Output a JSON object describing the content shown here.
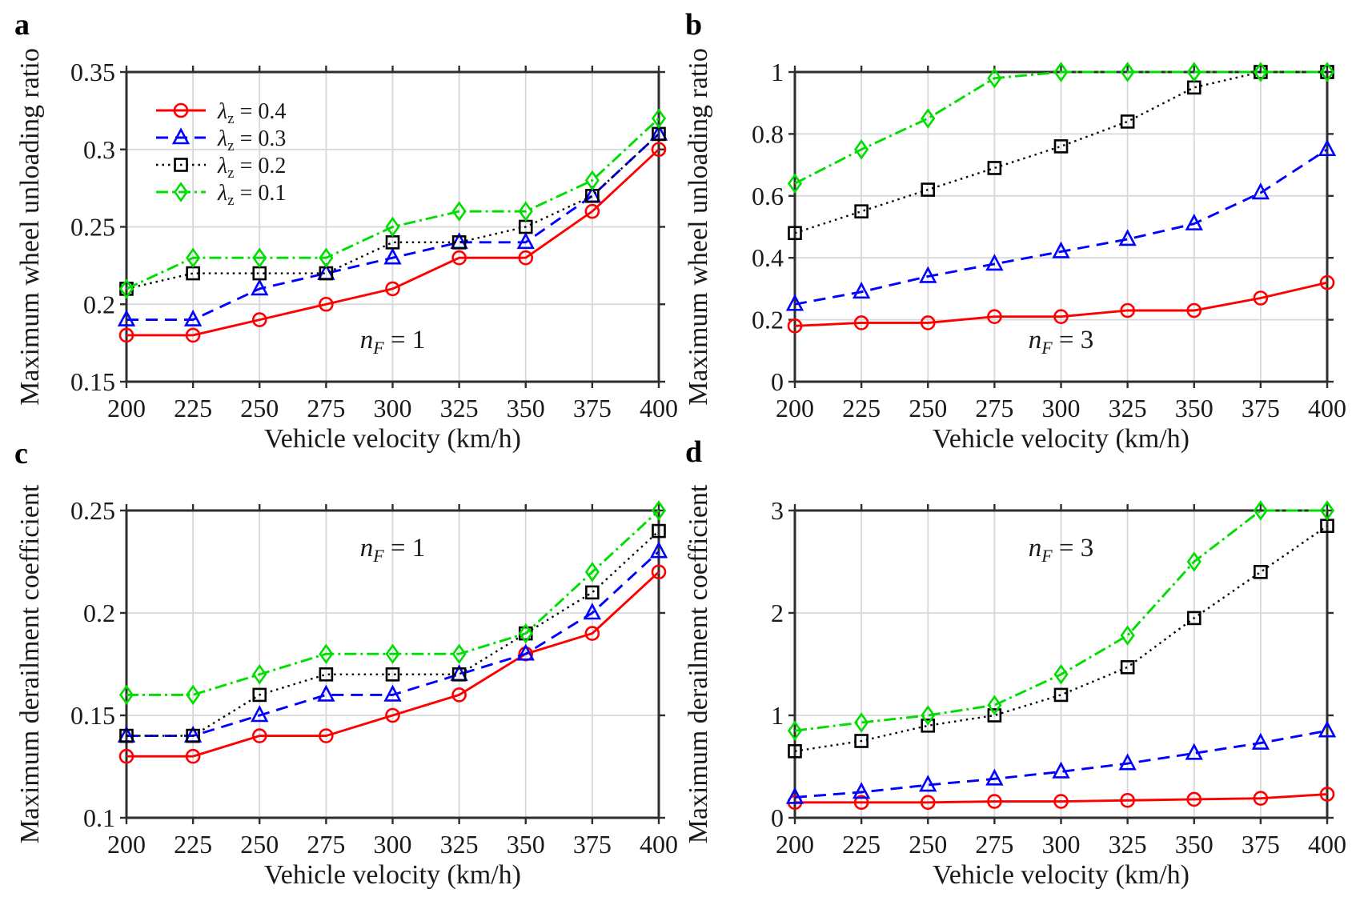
{
  "page": {
    "background": "#ffffff"
  },
  "style": {
    "axis_color": "#2e2e2e",
    "grid_color": "#d8d8d8",
    "text_color": "#1a1a1a",
    "red": "#ff0000",
    "blue": "#0000ff",
    "black": "#000000",
    "green": "#00dd00"
  },
  "chart_data": [
    {
      "id": "a",
      "type": "line",
      "panel_label": "a",
      "xlabel": "Vehicle velocity (km/h)",
      "ylabel": "Maximum wheel unloading ratio",
      "x": [
        200,
        225,
        250,
        275,
        300,
        325,
        350,
        375,
        400
      ],
      "xtick_labels": [
        "200",
        "225",
        "250",
        "275",
        "300",
        "325",
        "350",
        "375",
        "400"
      ],
      "ylim": [
        0.15,
        0.35
      ],
      "yticks": [
        0.15,
        0.2,
        0.25,
        0.3,
        0.35
      ],
      "ytick_labels": [
        "0.15",
        "0.2",
        "0.25",
        "0.3",
        "0.35"
      ],
      "grid": true,
      "legend_visible": true,
      "annotation": {
        "main": "n",
        "sub": "F",
        "eq": " = 1"
      },
      "series": [
        {
          "name": "lambda_z = 0.4",
          "label": {
            "sym": "λ",
            "sub": "z",
            "eq": " = 0.4"
          },
          "color": "#ff0000",
          "dash": "solid",
          "marker": "circle",
          "values": [
            0.18,
            0.18,
            0.19,
            0.2,
            0.21,
            0.23,
            0.23,
            0.26,
            0.3
          ]
        },
        {
          "name": "lambda_z = 0.3",
          "label": {
            "sym": "λ",
            "sub": "z",
            "eq": " = 0.3"
          },
          "color": "#0000ff",
          "dash": "dashed",
          "marker": "triangle",
          "values": [
            0.19,
            0.19,
            0.21,
            0.22,
            0.23,
            0.24,
            0.24,
            0.27,
            0.31
          ]
        },
        {
          "name": "lambda_z = 0.2",
          "label": {
            "sym": "λ",
            "sub": "z",
            "eq": " = 0.2"
          },
          "color": "#000000",
          "dash": "dotted",
          "marker": "square",
          "values": [
            0.21,
            0.22,
            0.22,
            0.22,
            0.24,
            0.24,
            0.25,
            0.27,
            0.31
          ]
        },
        {
          "name": "lambda_z = 0.1",
          "label": {
            "sym": "λ",
            "sub": "z",
            "eq": " = 0.1"
          },
          "color": "#00dd00",
          "dash": "dashdot",
          "marker": "diamond",
          "values": [
            0.21,
            0.23,
            0.23,
            0.23,
            0.25,
            0.26,
            0.26,
            0.28,
            0.32
          ]
        }
      ]
    },
    {
      "id": "b",
      "type": "line",
      "panel_label": "b",
      "xlabel": "Vehicle velocity (km/h)",
      "ylabel": "Maximum wheel unloading ratio",
      "x": [
        200,
        225,
        250,
        275,
        300,
        325,
        350,
        375,
        400
      ],
      "xtick_labels": [
        "200",
        "225",
        "250",
        "275",
        "300",
        "325",
        "350",
        "375",
        "400"
      ],
      "ylim": [
        0,
        1
      ],
      "yticks": [
        0,
        0.2,
        0.4,
        0.6,
        0.8,
        1
      ],
      "ytick_labels": [
        "0",
        "0.2",
        "0.4",
        "0.6",
        "0.8",
        "1"
      ],
      "grid": true,
      "legend_visible": false,
      "annotation": {
        "main": "n",
        "sub": "F",
        "eq": " = 3"
      },
      "series": [
        {
          "name": "lambda_z = 0.4",
          "label": {
            "sym": "λ",
            "sub": "z",
            "eq": " = 0.4"
          },
          "color": "#ff0000",
          "dash": "solid",
          "marker": "circle",
          "values": [
            0.18,
            0.19,
            0.19,
            0.21,
            0.21,
            0.23,
            0.23,
            0.27,
            0.32
          ]
        },
        {
          "name": "lambda_z = 0.3",
          "label": {
            "sym": "λ",
            "sub": "z",
            "eq": " = 0.3"
          },
          "color": "#0000ff",
          "dash": "dashed",
          "marker": "triangle",
          "values": [
            0.25,
            0.29,
            0.34,
            0.38,
            0.42,
            0.46,
            0.51,
            0.61,
            0.75
          ]
        },
        {
          "name": "lambda_z = 0.2",
          "label": {
            "sym": "λ",
            "sub": "z",
            "eq": " = 0.2"
          },
          "color": "#000000",
          "dash": "dotted",
          "marker": "square",
          "values": [
            0.48,
            0.55,
            0.62,
            0.69,
            0.76,
            0.84,
            0.95,
            1.0,
            1.0
          ]
        },
        {
          "name": "lambda_z = 0.1",
          "label": {
            "sym": "λ",
            "sub": "z",
            "eq": " = 0.1"
          },
          "color": "#00dd00",
          "dash": "dashdot",
          "marker": "diamond",
          "values": [
            0.64,
            0.75,
            0.85,
            0.98,
            1.0,
            1.0,
            1.0,
            1.0,
            1.0
          ]
        }
      ]
    },
    {
      "id": "c",
      "type": "line",
      "panel_label": "c",
      "xlabel": "Vehicle velocity (km/h)",
      "ylabel": "Maximum derailment coefficient",
      "x": [
        200,
        225,
        250,
        275,
        300,
        325,
        350,
        375,
        400
      ],
      "xtick_labels": [
        "200",
        "225",
        "250",
        "275",
        "300",
        "325",
        "350",
        "375",
        "400"
      ],
      "ylim": [
        0.1,
        0.25
      ],
      "yticks": [
        0.1,
        0.15,
        0.2,
        0.25
      ],
      "ytick_labels": [
        "0.1",
        "0.15",
        "0.2",
        "0.25"
      ],
      "grid": true,
      "legend_visible": false,
      "annotation": {
        "main": "n",
        "sub": "F",
        "eq": " = 1"
      },
      "series": [
        {
          "name": "lambda_z = 0.4",
          "label": {
            "sym": "λ",
            "sub": "z",
            "eq": " = 0.4"
          },
          "color": "#ff0000",
          "dash": "solid",
          "marker": "circle",
          "values": [
            0.13,
            0.13,
            0.14,
            0.14,
            0.15,
            0.16,
            0.18,
            0.19,
            0.22
          ]
        },
        {
          "name": "lambda_z = 0.3",
          "label": {
            "sym": "λ",
            "sub": "z",
            "eq": " = 0.3"
          },
          "color": "#0000ff",
          "dash": "dashed",
          "marker": "triangle",
          "values": [
            0.14,
            0.14,
            0.15,
            0.16,
            0.16,
            0.17,
            0.18,
            0.2,
            0.23
          ]
        },
        {
          "name": "lambda_z = 0.2",
          "label": {
            "sym": "λ",
            "sub": "z",
            "eq": " = 0.2"
          },
          "color": "#000000",
          "dash": "dotted",
          "marker": "square",
          "values": [
            0.14,
            0.14,
            0.16,
            0.17,
            0.17,
            0.17,
            0.19,
            0.21,
            0.24
          ]
        },
        {
          "name": "lambda_z = 0.1",
          "label": {
            "sym": "λ",
            "sub": "z",
            "eq": " = 0.1"
          },
          "color": "#00dd00",
          "dash": "dashdot",
          "marker": "diamond",
          "values": [
            0.16,
            0.16,
            0.17,
            0.18,
            0.18,
            0.18,
            0.19,
            0.22,
            0.25
          ]
        }
      ]
    },
    {
      "id": "d",
      "type": "line",
      "panel_label": "d",
      "xlabel": "Vehicle velocity (km/h)",
      "ylabel": "Maximum derailment coefficient",
      "x": [
        200,
        225,
        250,
        275,
        300,
        325,
        350,
        375,
        400
      ],
      "xtick_labels": [
        "200",
        "225",
        "250",
        "275",
        "300",
        "325",
        "350",
        "375",
        "400"
      ],
      "ylim": [
        0,
        3
      ],
      "yticks": [
        0,
        1,
        2,
        3
      ],
      "ytick_labels": [
        "0",
        "1",
        "2",
        "3"
      ],
      "grid": true,
      "legend_visible": false,
      "annotation": {
        "main": "n",
        "sub": "F",
        "eq": " = 3"
      },
      "series": [
        {
          "name": "lambda_z = 0.4",
          "label": {
            "sym": "λ",
            "sub": "z",
            "eq": " = 0.4"
          },
          "color": "#ff0000",
          "dash": "solid",
          "marker": "circle",
          "values": [
            0.15,
            0.15,
            0.15,
            0.16,
            0.16,
            0.17,
            0.18,
            0.19,
            0.23
          ]
        },
        {
          "name": "lambda_z = 0.3",
          "label": {
            "sym": "λ",
            "sub": "z",
            "eq": " = 0.3"
          },
          "color": "#0000ff",
          "dash": "dashed",
          "marker": "triangle",
          "values": [
            0.2,
            0.25,
            0.32,
            0.38,
            0.45,
            0.53,
            0.63,
            0.73,
            0.85
          ]
        },
        {
          "name": "lambda_z = 0.2",
          "label": {
            "sym": "λ",
            "sub": "z",
            "eq": " = 0.2"
          },
          "color": "#000000",
          "dash": "dotted",
          "marker": "square",
          "values": [
            0.65,
            0.75,
            0.9,
            1.0,
            1.2,
            1.47,
            1.95,
            2.4,
            2.85
          ]
        },
        {
          "name": "lambda_z = 0.1",
          "label": {
            "sym": "λ",
            "sub": "z",
            "eq": " = 0.1"
          },
          "color": "#00dd00",
          "dash": "dashdot",
          "marker": "diamond",
          "values": [
            0.85,
            0.93,
            1.0,
            1.1,
            1.4,
            1.78,
            2.5,
            3.0,
            3.0
          ]
        }
      ]
    }
  ]
}
